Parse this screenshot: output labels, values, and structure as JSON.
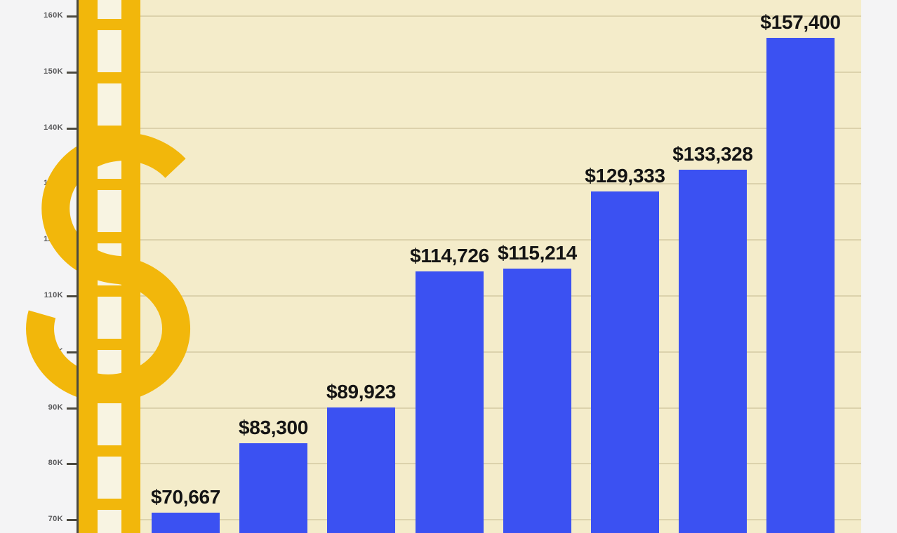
{
  "chart_data": {
    "type": "bar",
    "title": "",
    "xlabel": "",
    "ylabel": "",
    "values": [
      70667,
      83300,
      89923,
      114726,
      115214,
      129333,
      133328,
      157400
    ],
    "bar_labels": [
      "$70,667",
      "$83,300",
      "$89,923",
      "$114,726",
      "$115,214",
      "$129,333",
      "$133,328",
      "$157,400"
    ],
    "y_tick_labels": [
      "160K",
      "150K",
      "140K",
      "130K",
      "120K",
      "110K",
      "100K",
      "90K",
      "80K",
      "70K"
    ],
    "y_tick_values": [
      160000,
      150000,
      140000,
      130000,
      120000,
      110000,
      100000,
      90000,
      80000,
      70000
    ],
    "ylim": [
      70000,
      160000
    ],
    "grid": true,
    "legend": false,
    "layout_hints": {
      "orientation": "vertical",
      "value_labels_position": "above-bars",
      "x_category_labels_visible": false,
      "bottom_cropped": true
    },
    "colors": {
      "bar": "#3b51f2",
      "plot_background": "#f4ecca",
      "page_background": "#f4f4f5",
      "gridline": "#dcd2ac",
      "axis": "#4c4a40",
      "tick_label": "#58585a",
      "bar_label": "#141414"
    }
  },
  "decor": {
    "illustration": "dollar-sign-ladder-icon",
    "dollar_color": "#f2b70b",
    "ladder_window_color": "#f8f4e2"
  }
}
